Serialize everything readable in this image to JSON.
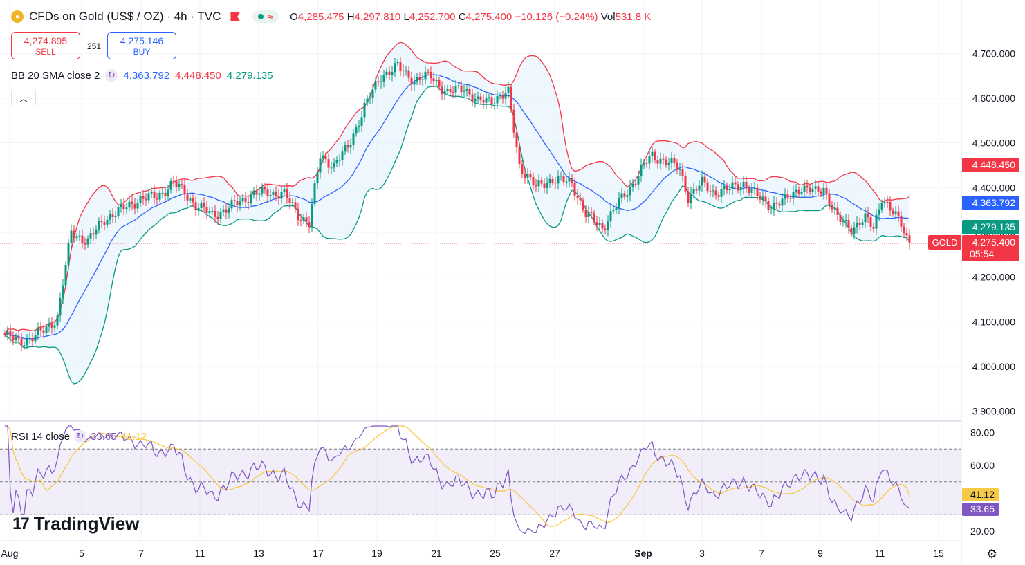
{
  "header": {
    "symbol_title": "CFDs on Gold (US$ / OZ) · 4h · TVC",
    "ohlc": {
      "o_label": "O",
      "o": "4,285.475",
      "h_label": "H",
      "h": "4,297.810",
      "l_label": "L",
      "l": "4,252.700",
      "c_label": "C",
      "c": "4,275.400",
      "change": "−10.126 (−0.24%)",
      "vol_label": "Vol",
      "vol": "531.8 K"
    },
    "sell": {
      "price": "4,274.895",
      "label": "SELL"
    },
    "spread": "251",
    "buy": {
      "price": "4,275.146",
      "label": "BUY"
    }
  },
  "indicators": {
    "bb": {
      "label": "BB 20 SMA close 2",
      "basis": "4,363.792",
      "upper": "4,448.450",
      "lower": "4,279.135"
    },
    "rsi": {
      "label": "RSI 14 close",
      "rsi": "33.65",
      "ma": "41.12"
    }
  },
  "branding": {
    "logo_text": "TradingView"
  },
  "colors": {
    "up": "#089981",
    "down": "#f23645",
    "basis": "#2962ff",
    "upper": "#f23645",
    "lower": "#089981",
    "rsi": "#7e57c2",
    "rsi_ma": "#f7c948",
    "band_fill": "#e3f2fd",
    "rsi_zone": "#7e57c2"
  },
  "chart_data": [
    {
      "type": "candlestick",
      "title": "CFDs on Gold (US$ / OZ) · 4h · TVC",
      "x_ticks": [
        "Aug",
        "5",
        "7",
        "11",
        "13",
        "17",
        "19",
        "21",
        "25",
        "27",
        "Sep",
        "3",
        "7",
        "9",
        "11",
        "15"
      ],
      "y_ticks": [
        "4,700.000",
        "4,600.000",
        "4,500.000",
        "4,400.000",
        "4,300.000",
        "4,200.000",
        "4,100.000",
        "4,000.000",
        "3,900.000"
      ],
      "ylim": [
        3880,
        4760
      ],
      "last_price_label": "GOLD",
      "last_price": "4,275.400",
      "countdown": "05:54",
      "close_anchors": [
        [
          0,
          4070
        ],
        [
          5,
          4055
        ],
        [
          10,
          4065
        ],
        [
          14,
          4080
        ],
        [
          19,
          4110
        ],
        [
          24,
          4300
        ],
        [
          30,
          4280
        ],
        [
          36,
          4330
        ],
        [
          42,
          4350
        ],
        [
          49,
          4375
        ],
        [
          55,
          4380
        ],
        [
          61,
          4410
        ],
        [
          65,
          4390
        ],
        [
          69,
          4360
        ],
        [
          75,
          4340
        ],
        [
          80,
          4350
        ],
        [
          85,
          4370
        ],
        [
          90,
          4385
        ],
        [
          95,
          4390
        ],
        [
          101,
          4385
        ],
        [
          106,
          4340
        ],
        [
          110,
          4320
        ],
        [
          114,
          4470
        ],
        [
          119,
          4450
        ],
        [
          124,
          4490
        ],
        [
          130,
          4580
        ],
        [
          136,
          4650
        ],
        [
          142,
          4670
        ],
        [
          148,
          4640
        ],
        [
          154,
          4650
        ],
        [
          160,
          4610
        ],
        [
          166,
          4625
        ],
        [
          171,
          4590
        ],
        [
          177,
          4600
        ],
        [
          182,
          4610
        ],
        [
          186,
          4450
        ],
        [
          192,
          4400
        ],
        [
          198,
          4420
        ],
        [
          205,
          4410
        ],
        [
          210,
          4340
        ],
        [
          216,
          4310
        ],
        [
          220,
          4350
        ],
        [
          226,
          4400
        ],
        [
          231,
          4450
        ],
        [
          234,
          4470
        ],
        [
          239,
          4460
        ],
        [
          244,
          4440
        ],
        [
          247,
          4380
        ],
        [
          252,
          4410
        ],
        [
          256,
          4390
        ],
        [
          261,
          4395
        ],
        [
          267,
          4410
        ],
        [
          272,
          4380
        ],
        [
          277,
          4360
        ],
        [
          282,
          4370
        ],
        [
          287,
          4400
        ],
        [
          293,
          4390
        ],
        [
          296,
          4400
        ],
        [
          301,
          4330
        ],
        [
          306,
          4310
        ],
        [
          311,
          4330
        ],
        [
          314,
          4310
        ],
        [
          317,
          4380
        ],
        [
          320,
          4350
        ],
        [
          324,
          4320
        ],
        [
          327,
          4275.4
        ]
      ],
      "bb_upper": "4,448.450",
      "bb_basis": "4,363.792",
      "bb_lower": "4,279.135"
    },
    {
      "type": "line",
      "title": "RSI 14 close",
      "y_ticks": [
        "80.00",
        "60.00",
        "20.00"
      ],
      "ylim": [
        15,
        85
      ],
      "bands": [
        30,
        50,
        70
      ],
      "rsi_last": "33.65",
      "ma_last": "41.12"
    }
  ]
}
